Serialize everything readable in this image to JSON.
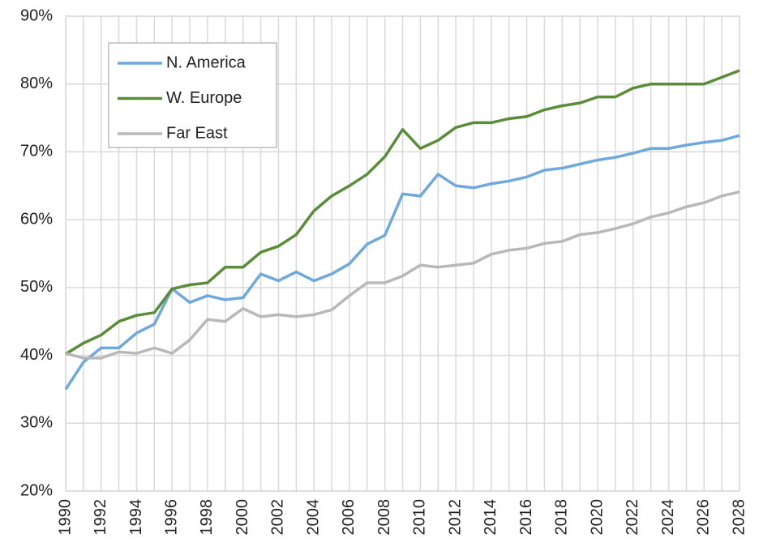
{
  "chart_data": {
    "type": "line",
    "categories": [
      "1990",
      null,
      "1992",
      null,
      "1994",
      null,
      "1996",
      null,
      "1998",
      null,
      "2000",
      null,
      "2002",
      null,
      "2004",
      null,
      "2006",
      null,
      "2008",
      null,
      "2010",
      null,
      "2012",
      null,
      "2014",
      null,
      "2016",
      null,
      "2018",
      null,
      "2020",
      null,
      "2022",
      null,
      "2024",
      null,
      "2026",
      null,
      "2028"
    ],
    "series": [
      {
        "name": "N. America",
        "color": "#6fa8dc",
        "values": [
          35,
          39,
          41.1,
          41.1,
          43.3,
          44.6,
          49.8,
          47.8,
          48.8,
          48.2,
          48.5,
          52,
          51,
          52.3,
          51,
          52,
          53.5,
          56.4,
          57.7,
          63.8,
          63.5,
          66.7,
          65,
          64.7,
          65.3,
          65.7,
          66.3,
          67.3,
          67.6,
          68.2,
          68.8,
          69.2,
          69.8,
          70.5,
          70.5,
          71,
          71.4,
          71.7,
          72.4
        ]
      },
      {
        "name": "W. Europe",
        "color": "#5b8c3a",
        "values": [
          40.2,
          41.8,
          43,
          45,
          45.9,
          46.3,
          49.8,
          50.4,
          50.7,
          53,
          53,
          55.2,
          56.1,
          57.8,
          61.3,
          63.5,
          65,
          66.7,
          69.3,
          73.3,
          70.5,
          71.7,
          73.6,
          74.3,
          74.3,
          74.9,
          75.2,
          76.2,
          76.8,
          77.2,
          78.1,
          78.1,
          79.4,
          80,
          80,
          80,
          80,
          81,
          82
        ]
      },
      {
        "name": "Far East",
        "color": "#b8b8b8",
        "values": [
          40.3,
          39.6,
          39.6,
          40.5,
          40.3,
          41.1,
          40.3,
          42.3,
          45.3,
          45,
          46.9,
          45.7,
          46,
          45.7,
          46,
          46.7,
          48.8,
          50.7,
          50.7,
          51.7,
          53.3,
          53,
          53.3,
          53.6,
          54.9,
          55.5,
          55.8,
          56.5,
          56.8,
          57.8,
          58.1,
          58.7,
          59.4,
          60.4,
          61,
          61.9,
          62.5,
          63.5,
          64.1
        ]
      }
    ],
    "ylim": [
      20,
      90
    ],
    "yticks": [
      {
        "value": 20,
        "label": "20%"
      },
      {
        "value": 30,
        "label": "30%"
      },
      {
        "value": 40,
        "label": "40%"
      },
      {
        "value": 50,
        "label": "50%"
      },
      {
        "value": 60,
        "label": "60%"
      },
      {
        "value": 70,
        "label": "70%"
      },
      {
        "value": 80,
        "label": "80%"
      },
      {
        "value": 90,
        "label": "90%"
      }
    ],
    "grid": true,
    "legend": "upper left"
  }
}
